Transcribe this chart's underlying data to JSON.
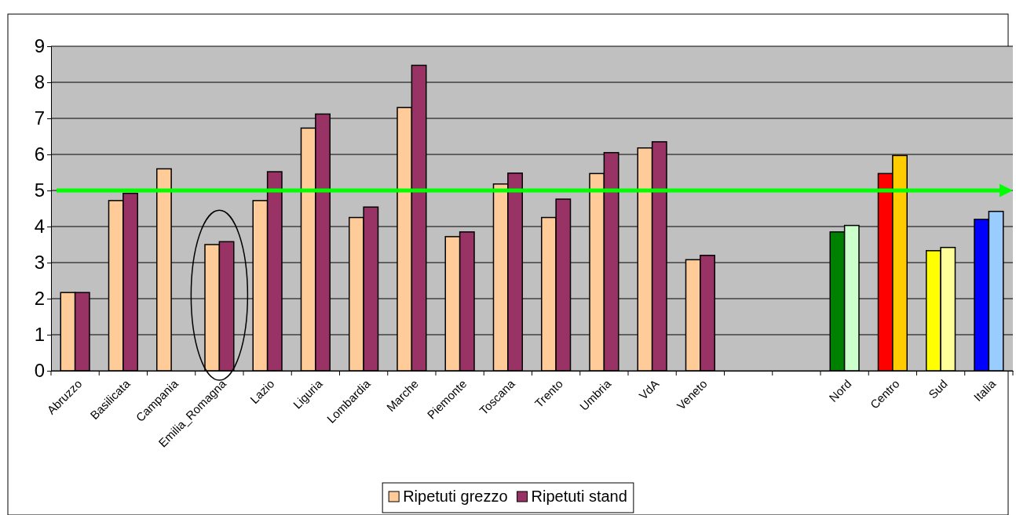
{
  "chart_data": {
    "type": "bar",
    "categories": [
      "Abruzzo",
      "Basilicata",
      "Campania",
      "Emilia_Romagna",
      "Lazio",
      "Liguria",
      "Lombardia",
      "Marche",
      "Piemonte",
      "Toscana",
      "Trento",
      "Umbria",
      "VdA",
      "Veneto",
      null,
      null,
      "Nord",
      "Centro",
      "Sud",
      "Italia"
    ],
    "series": [
      {
        "name": "Ripetuti grezzo",
        "color": "#ffcc99",
        "values": [
          2.17,
          4.72,
          5.6,
          3.5,
          4.72,
          6.73,
          4.25,
          7.3,
          3.72,
          5.18,
          4.25,
          5.47,
          6.18,
          3.08,
          null,
          null,
          3.85,
          5.47,
          3.33,
          4.2
        ],
        "colors": [
          "#ffcc99",
          "#ffcc99",
          "#ffcc99",
          "#ffcc99",
          "#ffcc99",
          "#ffcc99",
          "#ffcc99",
          "#ffcc99",
          "#ffcc99",
          "#ffcc99",
          "#ffcc99",
          "#ffcc99",
          "#ffcc99",
          "#ffcc99",
          null,
          null,
          "#008000",
          "#ff0000",
          "#ffff00",
          "#0000ff"
        ]
      },
      {
        "name": "Ripetuti stand",
        "color": "#993366",
        "values": [
          2.17,
          4.92,
          null,
          3.58,
          5.52,
          7.12,
          4.54,
          8.47,
          3.85,
          5.48,
          4.76,
          6.05,
          6.35,
          3.2,
          null,
          null,
          4.03,
          5.97,
          3.42,
          4.42
        ],
        "colors": [
          "#993366",
          "#993366",
          null,
          "#993366",
          "#993366",
          "#993366",
          "#993366",
          "#993366",
          "#993366",
          "#993366",
          "#993366",
          "#993366",
          "#993366",
          "#993366",
          null,
          null,
          "#ccffcc",
          "#ffcc00",
          "#ffff99",
          "#99ccff"
        ]
      }
    ],
    "ylim": [
      0,
      9
    ],
    "yticks": [
      0,
      1,
      2,
      3,
      4,
      5,
      6,
      7,
      8,
      9
    ],
    "grid": "y",
    "legend": "bottom",
    "ref_lines": [
      {
        "axis": "y",
        "value": 5,
        "color": "#00ff00"
      }
    ]
  }
}
